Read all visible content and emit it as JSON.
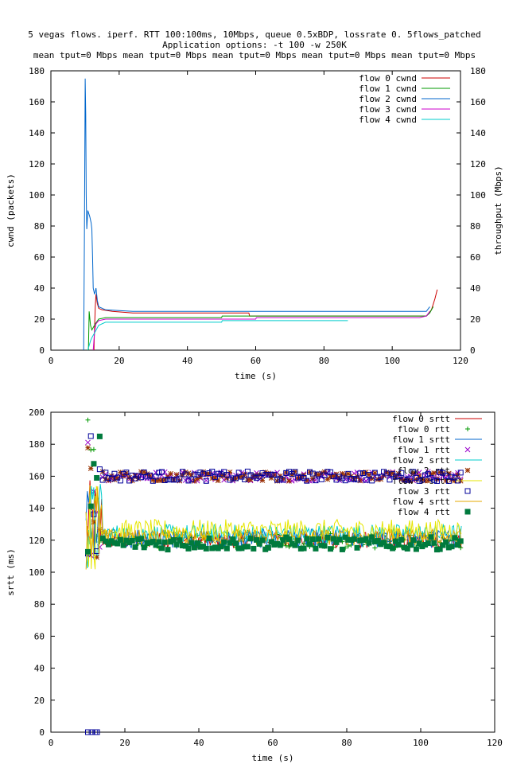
{
  "header": {
    "title": "5 vegas flows. iperf. RTT 100:100ms, 10Mbps, queue 0.5xBDP, lossrate 0. 5flows_patched",
    "options": "Application options: -t 100 -w 250K",
    "tputs": "mean tput=0 Mbps mean tput=0 Mbps mean tput=0 Mbps mean tput=0 Mbps mean tput=0 Mbps"
  },
  "chart_data": [
    {
      "type": "line",
      "xlabel": "time (s)",
      "ylabel": "cwnd (packets)",
      "y2label": "throughput (Mbps)",
      "xlim": [
        0,
        120
      ],
      "ylim": [
        0,
        180
      ],
      "y2lim": [
        0,
        180
      ],
      "xticks": [
        0,
        20,
        40,
        60,
        80,
        100,
        120
      ],
      "yticks": [
        0,
        20,
        40,
        60,
        80,
        100,
        120,
        140,
        160,
        180
      ],
      "y2ticks": [
        0,
        20,
        40,
        60,
        80,
        100,
        120,
        140,
        160,
        180
      ],
      "legend_position": "top-right",
      "series": [
        {
          "name": "flow 0 cwnd",
          "color": "#cc0000",
          "points": [
            [
              12.6,
              0
            ],
            [
              12.8,
              14
            ],
            [
              13,
              28
            ],
            [
              13.2,
              36
            ],
            [
              13.6,
              30
            ],
            [
              14,
              27
            ],
            [
              15,
              26
            ],
            [
              18,
              25
            ],
            [
              24,
              24
            ],
            [
              58,
              24
            ],
            [
              58.2,
              22
            ],
            [
              110,
              22
            ],
            [
              111.5,
              26
            ],
            [
              112.5,
              33
            ],
            [
              113.2,
              39
            ]
          ]
        },
        {
          "name": "flow 1 cwnd",
          "color": "#009900",
          "points": [
            [
              11,
              0
            ],
            [
              11.2,
              25
            ],
            [
              11.6,
              16
            ],
            [
              12,
              13
            ],
            [
              13,
              17
            ],
            [
              14,
              20
            ],
            [
              16,
              21
            ],
            [
              50,
              21
            ],
            [
              50.2,
              22
            ],
            [
              110,
              22
            ],
            [
              111,
              24
            ],
            [
              112,
              28
            ]
          ]
        },
        {
          "name": "flow 2 cwnd",
          "color": "#0066cc",
          "points": [
            [
              9.6,
              0
            ],
            [
              9.8,
              70
            ],
            [
              9.9,
              110
            ],
            [
              10.05,
              175
            ],
            [
              10.2,
              152
            ],
            [
              10.35,
              100
            ],
            [
              10.5,
              78
            ],
            [
              10.8,
              90
            ],
            [
              11.4,
              86
            ],
            [
              11.8,
              82
            ],
            [
              12,
              78
            ],
            [
              12.2,
              60
            ],
            [
              12.4,
              40
            ],
            [
              12.8,
              36
            ],
            [
              13.2,
              40
            ],
            [
              13.6,
              32
            ],
            [
              14,
              28
            ],
            [
              16,
              26
            ],
            [
              24,
              25
            ],
            [
              110,
              25
            ],
            [
              111,
              28
            ]
          ]
        },
        {
          "name": "flow 3 cwnd",
          "color": "#cc00cc",
          "points": [
            [
              12.4,
              0
            ],
            [
              12.8,
              12
            ],
            [
              13.2,
              17
            ],
            [
              14,
              19
            ],
            [
              16,
              20
            ],
            [
              60,
              20
            ],
            [
              60.2,
              21
            ],
            [
              108,
              21
            ],
            [
              110,
              22
            ],
            [
              111,
              25
            ]
          ]
        },
        {
          "name": "flow 4 cwnd",
          "color": "#00cccc",
          "points": [
            [
              10.8,
              0
            ],
            [
              11.2,
              3
            ],
            [
              11.6,
              6
            ],
            [
              12,
              8
            ],
            [
              13,
              12
            ],
            [
              14,
              16
            ],
            [
              16,
              18
            ],
            [
              50,
              18
            ],
            [
              50.2,
              19
            ],
            [
              87,
              19
            ]
          ]
        }
      ]
    },
    {
      "type": "scatter",
      "xlabel": "time (s)",
      "ylabel": "srtt (ms)",
      "xlim": [
        0,
        120
      ],
      "ylim": [
        0,
        200
      ],
      "xticks": [
        0,
        20,
        40,
        60,
        80,
        100,
        120
      ],
      "yticks": [
        0,
        20,
        40,
        60,
        80,
        100,
        120,
        140,
        160,
        180,
        200
      ],
      "legend_position": "top-right",
      "bands": {
        "rtt_low": {
          "range": [
            112,
            128
          ],
          "from": 13,
          "to": 111
        },
        "rtt_high": {
          "range": [
            156,
            166
          ],
          "from": 14,
          "to": 111
        },
        "startup": {
          "from": 9,
          "to": 14,
          "range": [
            100,
            196
          ]
        }
      },
      "series": [
        {
          "name": "flow 0 srtt",
          "color": "#cc0000",
          "marker": "line",
          "level": 120,
          "spread": 10
        },
        {
          "name": "flow 0 rtt",
          "color": "#009900",
          "marker": "plus",
          "level": 120,
          "spread": 10
        },
        {
          "name": "flow 1 srtt",
          "color": "#0066cc",
          "marker": "line",
          "level": 121,
          "spread": 12
        },
        {
          "name": "flow 1 rtt",
          "color": "#9900cc",
          "marker": "cross",
          "level": 160,
          "spread": 6
        },
        {
          "name": "flow 2 srtt",
          "color": "#00cccc",
          "marker": "line",
          "level": 124,
          "spread": 12
        },
        {
          "name": "flow 2 rtt",
          "color": "#993300",
          "marker": "star",
          "level": 160,
          "spread": 6
        },
        {
          "name": "flow 3 srtt",
          "color": "#e6e600",
          "marker": "line",
          "level": 126,
          "spread": 14
        },
        {
          "name": "flow 3 rtt",
          "color": "#000099",
          "marker": "square",
          "level": 160,
          "spread": 6
        },
        {
          "name": "flow 4 srtt",
          "color": "#e6a800",
          "marker": "line",
          "level": 122,
          "spread": 10
        },
        {
          "name": "flow 4 rtt",
          "color": "#007a3d",
          "marker": "filledsquare",
          "level": 118,
          "spread": 8
        }
      ],
      "zero_points": [
        10,
        11,
        12,
        12.5
      ]
    }
  ]
}
